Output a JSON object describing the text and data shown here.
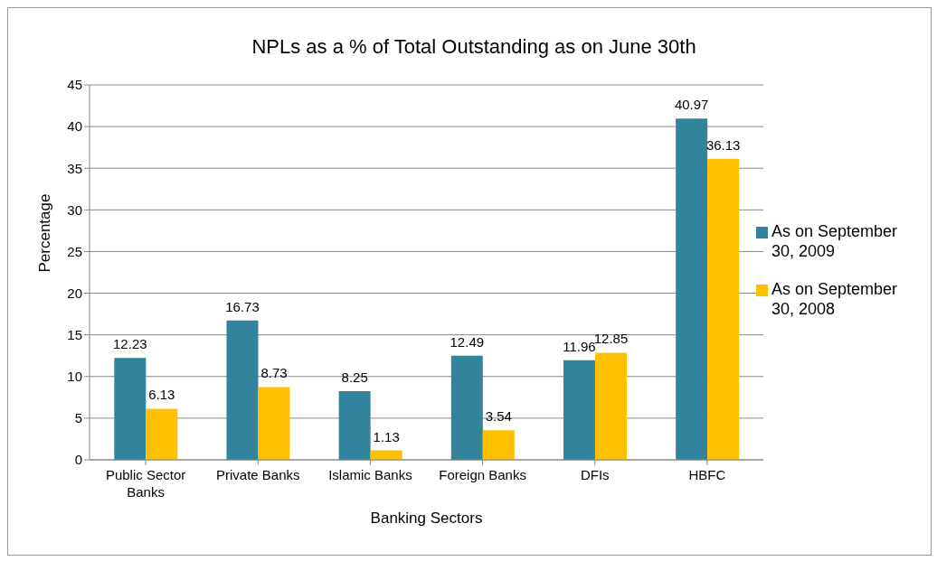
{
  "chart_data": {
    "type": "bar",
    "title": "NPLs as a % of Total Outstanding as on June 30th",
    "xlabel": "Banking Sectors",
    "ylabel": "Percentage",
    "categories": [
      "Public Sector Banks",
      "Private Banks",
      "Islamic Banks",
      "Foreign Banks",
      "DFIs",
      "HBFC"
    ],
    "series": [
      {
        "name": "As on September 30, 2009",
        "color": "#31849b",
        "values": [
          12.23,
          16.73,
          8.25,
          12.49,
          11.96,
          40.97
        ]
      },
      {
        "name": "As on September 30, 2008",
        "color": "#ffc000",
        "values": [
          6.13,
          8.73,
          1.13,
          3.54,
          12.85,
          36.13
        ]
      }
    ],
    "ylim": [
      0,
      45
    ],
    "yticks": [
      0,
      5,
      10,
      15,
      20,
      25,
      30,
      35,
      40,
      45
    ],
    "grid": "y",
    "legend": "right",
    "data_labels": true
  }
}
